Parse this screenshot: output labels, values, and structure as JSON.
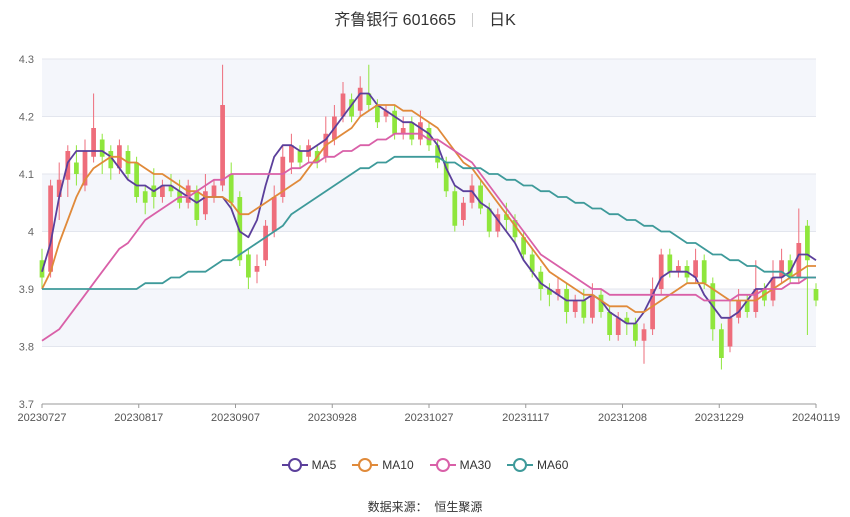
{
  "title": {
    "stock": "齐鲁银行 601665",
    "period": "日K"
  },
  "source": {
    "label": "数据来源：",
    "value": "恒生聚源"
  },
  "chart_data": {
    "type": "candlestick",
    "ylim": [
      3.7,
      4.3
    ],
    "yticks": [
      "3.7",
      "3.8",
      "3.9",
      "4",
      "4.1",
      "4.2",
      "4.3"
    ],
    "xticks": [
      "20230727",
      "20230817",
      "20230907",
      "20230928",
      "20231027",
      "20231117",
      "20231208",
      "20231229",
      "20240119"
    ],
    "up_color": "#ee6d7b",
    "down_color": "#8fe63c",
    "candles": [
      [
        3.95,
        3.92,
        3.9,
        3.97
      ],
      [
        3.93,
        4.08,
        3.92,
        4.09
      ],
      [
        4.06,
        4.09,
        4.02,
        4.12
      ],
      [
        4.09,
        4.14,
        4.06,
        4.15
      ],
      [
        4.12,
        4.1,
        4.08,
        4.15
      ],
      [
        4.08,
        4.14,
        4.07,
        4.16
      ],
      [
        4.13,
        4.18,
        4.12,
        4.24
      ],
      [
        4.16,
        4.13,
        4.1,
        4.17
      ],
      [
        4.14,
        4.11,
        4.09,
        4.15
      ],
      [
        4.11,
        4.15,
        4.1,
        4.16
      ],
      [
        4.14,
        4.1,
        4.09,
        4.15
      ],
      [
        4.12,
        4.06,
        4.05,
        4.13
      ],
      [
        4.07,
        4.05,
        4.03,
        4.08
      ],
      [
        4.08,
        4.06,
        4.04,
        4.11
      ],
      [
        4.06,
        4.08,
        4.05,
        4.09
      ],
      [
        4.08,
        4.07,
        4.06,
        4.1
      ],
      [
        4.07,
        4.05,
        4.04,
        4.09
      ],
      [
        4.05,
        4.08,
        4.04,
        4.09
      ],
      [
        4.07,
        4.02,
        4.01,
        4.08
      ],
      [
        4.03,
        4.07,
        4.02,
        4.1
      ],
      [
        4.06,
        4.08,
        4.05,
        4.09
      ],
      [
        4.08,
        4.22,
        4.07,
        4.29
      ],
      [
        4.1,
        4.05,
        4.04,
        4.12
      ],
      [
        4.06,
        3.95,
        3.94,
        4.07
      ],
      [
        3.96,
        3.92,
        3.9,
        3.97
      ],
      [
        3.93,
        3.94,
        3.91,
        3.96
      ],
      [
        3.95,
        4.01,
        3.94,
        4.02
      ],
      [
        4.0,
        4.06,
        3.99,
        4.08
      ],
      [
        4.06,
        4.13,
        4.05,
        4.15
      ],
      [
        4.12,
        4.15,
        4.1,
        4.17
      ],
      [
        4.14,
        4.12,
        4.11,
        4.15
      ],
      [
        4.13,
        4.15,
        4.12,
        4.16
      ],
      [
        4.14,
        4.12,
        4.11,
        4.15
      ],
      [
        4.13,
        4.17,
        4.12,
        4.2
      ],
      [
        4.16,
        4.2,
        4.15,
        4.22
      ],
      [
        4.2,
        4.24,
        4.19,
        4.26
      ],
      [
        4.23,
        4.2,
        4.19,
        4.24
      ],
      [
        4.21,
        4.25,
        4.2,
        4.27
      ],
      [
        4.24,
        4.22,
        4.21,
        4.29
      ],
      [
        4.22,
        4.19,
        4.18,
        4.23
      ],
      [
        4.2,
        4.21,
        4.19,
        4.22
      ],
      [
        4.21,
        4.17,
        4.16,
        4.22
      ],
      [
        4.17,
        4.18,
        4.16,
        4.2
      ],
      [
        4.19,
        4.16,
        4.15,
        4.2
      ],
      [
        4.16,
        4.19,
        4.15,
        4.21
      ],
      [
        4.18,
        4.15,
        4.14,
        4.19
      ],
      [
        4.15,
        4.12,
        4.11,
        4.16
      ],
      [
        4.12,
        4.07,
        4.06,
        4.13
      ],
      [
        4.07,
        4.01,
        4.0,
        4.08
      ],
      [
        4.02,
        4.05,
        4.01,
        4.06
      ],
      [
        4.05,
        4.08,
        4.04,
        4.1
      ],
      [
        4.08,
        4.04,
        4.03,
        4.09
      ],
      [
        4.04,
        4.0,
        3.99,
        4.05
      ],
      [
        4.0,
        4.03,
        3.99,
        4.04
      ],
      [
        4.03,
        4.02,
        4.0,
        4.05
      ],
      [
        4.02,
        3.99,
        3.98,
        4.03
      ],
      [
        3.99,
        3.96,
        3.95,
        4.0
      ],
      [
        3.96,
        3.93,
        3.92,
        3.97
      ],
      [
        3.93,
        3.9,
        3.88,
        3.94
      ],
      [
        3.9,
        3.89,
        3.87,
        3.91
      ],
      [
        3.89,
        3.9,
        3.88,
        3.92
      ],
      [
        3.9,
        3.86,
        3.84,
        3.91
      ],
      [
        3.86,
        3.88,
        3.85,
        3.89
      ],
      [
        3.88,
        3.85,
        3.84,
        3.9
      ],
      [
        3.85,
        3.89,
        3.84,
        3.91
      ],
      [
        3.89,
        3.86,
        3.85,
        3.9
      ],
      [
        3.86,
        3.82,
        3.81,
        3.87
      ],
      [
        3.82,
        3.85,
        3.81,
        3.86
      ],
      [
        3.85,
        3.84,
        3.82,
        3.86
      ],
      [
        3.84,
        3.81,
        3.8,
        3.85
      ],
      [
        3.81,
        3.83,
        3.77,
        3.84
      ],
      [
        3.83,
        3.9,
        3.82,
        3.92
      ],
      [
        3.9,
        3.96,
        3.89,
        3.97
      ],
      [
        3.96,
        3.93,
        3.92,
        3.97
      ],
      [
        3.93,
        3.94,
        3.92,
        3.95
      ],
      [
        3.94,
        3.92,
        3.91,
        3.95
      ],
      [
        3.92,
        3.95,
        3.91,
        3.97
      ],
      [
        3.95,
        3.91,
        3.9,
        3.96
      ],
      [
        3.91,
        3.83,
        3.81,
        3.92
      ],
      [
        3.83,
        3.78,
        3.76,
        3.84
      ],
      [
        3.8,
        3.85,
        3.79,
        3.88
      ],
      [
        3.85,
        3.88,
        3.84,
        3.9
      ],
      [
        3.88,
        3.86,
        3.85,
        3.89
      ],
      [
        3.86,
        3.9,
        3.85,
        3.95
      ],
      [
        3.9,
        3.88,
        3.87,
        3.91
      ],
      [
        3.88,
        3.92,
        3.87,
        3.95
      ],
      [
        3.92,
        3.95,
        3.91,
        3.97
      ],
      [
        3.95,
        3.92,
        3.91,
        3.96
      ],
      [
        3.92,
        3.98,
        3.91,
        4.04
      ],
      [
        4.01,
        3.95,
        3.82,
        4.02
      ],
      [
        3.9,
        3.88,
        3.87,
        3.91
      ]
    ],
    "series": [
      {
        "name": "MA5",
        "color": "#5b3f9b",
        "values": [
          3.93,
          3.98,
          4.06,
          4.12,
          4.14,
          4.14,
          4.14,
          4.14,
          4.13,
          4.11,
          4.09,
          4.08,
          4.08,
          4.07,
          4.08,
          4.08,
          4.07,
          4.06,
          4.05,
          4.06,
          4.06,
          4.06,
          4.04,
          4.0,
          3.99,
          4.02,
          4.08,
          4.13,
          4.15,
          4.15,
          4.14,
          4.14,
          4.15,
          4.16,
          4.18,
          4.2,
          4.22,
          4.24,
          4.24,
          4.22,
          4.21,
          4.2,
          4.19,
          4.19,
          4.18,
          4.17,
          4.15,
          4.11,
          4.08,
          4.07,
          4.07,
          4.05,
          4.04,
          4.02,
          4.0,
          3.98,
          3.95,
          3.93,
          3.91,
          3.9,
          3.89,
          3.88,
          3.88,
          3.88,
          3.89,
          3.88,
          3.86,
          3.85,
          3.84,
          3.84,
          3.86,
          3.89,
          3.92,
          3.93,
          3.93,
          3.93,
          3.92,
          3.89,
          3.87,
          3.85,
          3.85,
          3.86,
          3.88,
          3.9,
          3.9,
          3.92,
          3.92,
          3.93,
          3.96,
          3.96,
          3.95
        ]
      },
      {
        "name": "MA10",
        "color": "#e08a3a",
        "values": [
          3.9,
          3.93,
          3.98,
          4.02,
          4.06,
          4.09,
          4.11,
          4.12,
          4.13,
          4.13,
          4.12,
          4.12,
          4.11,
          4.1,
          4.1,
          4.09,
          4.08,
          4.07,
          4.07,
          4.06,
          4.06,
          4.06,
          4.05,
          4.03,
          4.03,
          4.04,
          4.05,
          4.06,
          4.07,
          4.08,
          4.09,
          4.11,
          4.13,
          4.15,
          4.16,
          4.17,
          4.18,
          4.2,
          4.21,
          4.22,
          4.22,
          4.22,
          4.21,
          4.21,
          4.2,
          4.19,
          4.18,
          4.16,
          4.14,
          4.12,
          4.11,
          4.09,
          4.07,
          4.05,
          4.03,
          4.01,
          3.99,
          3.97,
          3.95,
          3.93,
          3.92,
          3.91,
          3.9,
          3.89,
          3.89,
          3.88,
          3.87,
          3.87,
          3.87,
          3.86,
          3.86,
          3.87,
          3.88,
          3.89,
          3.9,
          3.91,
          3.91,
          3.91,
          3.9,
          3.89,
          3.88,
          3.88,
          3.88,
          3.88,
          3.89,
          3.9,
          3.91,
          3.92,
          3.93,
          3.94,
          3.94
        ]
      },
      {
        "name": "MA30",
        "color": "#d960a8",
        "values": [
          3.81,
          3.82,
          3.83,
          3.85,
          3.87,
          3.89,
          3.91,
          3.93,
          3.95,
          3.97,
          3.98,
          4.0,
          4.02,
          4.03,
          4.04,
          4.05,
          4.06,
          4.06,
          4.07,
          4.08,
          4.09,
          4.09,
          4.1,
          4.1,
          4.1,
          4.1,
          4.1,
          4.1,
          4.1,
          4.11,
          4.11,
          4.12,
          4.12,
          4.13,
          4.13,
          4.14,
          4.14,
          4.15,
          4.15,
          4.16,
          4.16,
          4.17,
          4.17,
          4.17,
          4.17,
          4.16,
          4.16,
          4.15,
          4.14,
          4.13,
          4.12,
          4.1,
          4.08,
          4.06,
          4.04,
          4.02,
          4.0,
          3.98,
          3.96,
          3.95,
          3.94,
          3.93,
          3.92,
          3.91,
          3.9,
          3.9,
          3.89,
          3.89,
          3.89,
          3.89,
          3.89,
          3.89,
          3.89,
          3.89,
          3.89,
          3.89,
          3.89,
          3.88,
          3.88,
          3.88,
          3.88,
          3.89,
          3.89,
          3.89,
          3.9,
          3.9,
          3.9,
          3.91,
          3.91,
          3.92,
          3.92
        ]
      },
      {
        "name": "MA60",
        "color": "#3e9a9a",
        "values": [
          3.9,
          3.9,
          3.9,
          3.9,
          3.9,
          3.9,
          3.9,
          3.9,
          3.9,
          3.9,
          3.9,
          3.9,
          3.91,
          3.91,
          3.91,
          3.92,
          3.92,
          3.93,
          3.93,
          3.93,
          3.94,
          3.95,
          3.95,
          3.96,
          3.97,
          3.98,
          3.99,
          4.0,
          4.01,
          4.03,
          4.04,
          4.05,
          4.06,
          4.07,
          4.08,
          4.09,
          4.1,
          4.11,
          4.11,
          4.12,
          4.12,
          4.13,
          4.13,
          4.13,
          4.13,
          4.13,
          4.13,
          4.12,
          4.12,
          4.11,
          4.11,
          4.11,
          4.1,
          4.1,
          4.09,
          4.09,
          4.08,
          4.08,
          4.07,
          4.07,
          4.06,
          4.06,
          4.05,
          4.05,
          4.04,
          4.04,
          4.03,
          4.03,
          4.02,
          4.02,
          4.01,
          4.01,
          4.0,
          4.0,
          3.99,
          3.98,
          3.98,
          3.97,
          3.96,
          3.96,
          3.95,
          3.95,
          3.94,
          3.94,
          3.93,
          3.93,
          3.93,
          3.92,
          3.92,
          3.92,
          3.92
        ]
      }
    ],
    "legend_position": "bottom",
    "grid": true
  }
}
